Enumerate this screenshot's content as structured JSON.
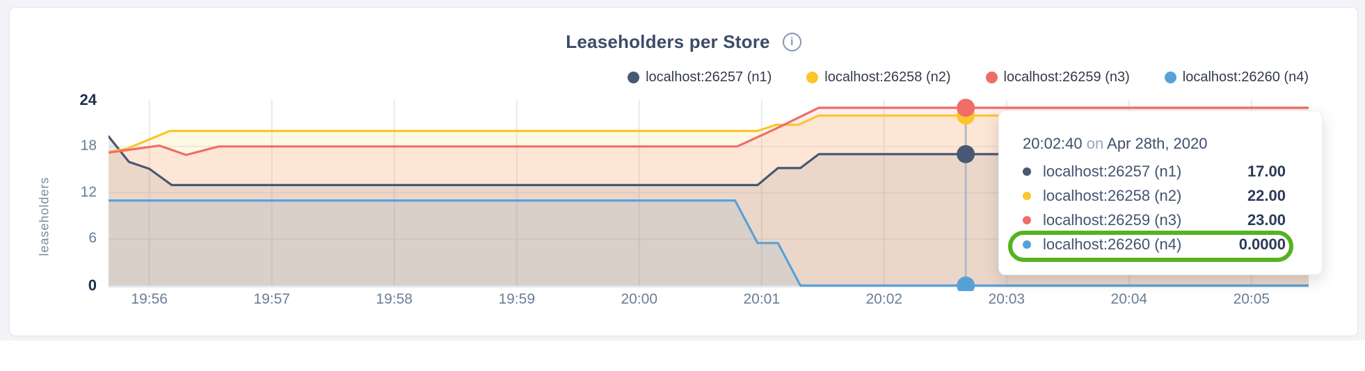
{
  "card": {
    "title": "Leaseholders per Store",
    "info_icon_glyph": "i"
  },
  "legend": {
    "items": [
      {
        "id": "n1",
        "label": "localhost:26257 (n1)",
        "color": "#475872"
      },
      {
        "id": "n2",
        "label": "localhost:26258 (n2)",
        "color": "#fcc52b"
      },
      {
        "id": "n3",
        "label": "localhost:26259 (n3)",
        "color": "#ef6d68"
      },
      {
        "id": "n4",
        "label": "localhost:26260 (n4)",
        "color": "#58a1d8"
      }
    ]
  },
  "chart_data": {
    "type": "area",
    "title": "Leaseholders per Store",
    "xlabel": "",
    "ylabel": "leaseholders",
    "ylim": [
      0,
      24
    ],
    "y_ticks": [
      0,
      6,
      12,
      18,
      24
    ],
    "y_ticks_strong": [
      0,
      24
    ],
    "x_ticks": [
      "19:56",
      "19:57",
      "19:58",
      "19:59",
      "20:00",
      "20:01",
      "20:02",
      "20:03",
      "20:04",
      "20:05"
    ],
    "x_range": [
      "19:55:40",
      "20:05:28"
    ],
    "grid": true,
    "legend_position": "top-right",
    "series": [
      {
        "name": "localhost:26257 (n1)",
        "color": "#475872",
        "points": [
          [
            "19:55:40",
            19.3
          ],
          [
            "19:55:50",
            16
          ],
          [
            "19:56:00",
            15.1
          ],
          [
            "19:56:11",
            13
          ],
          [
            "20:00:58",
            13
          ],
          [
            "20:01:08",
            15.2
          ],
          [
            "20:01:19",
            15.2
          ],
          [
            "20:01:28",
            17
          ],
          [
            "20:05:28",
            17
          ]
        ]
      },
      {
        "name": "localhost:26258 (n2)",
        "color": "#fcc52b",
        "points": [
          [
            "19:55:40",
            17.3
          ],
          [
            "19:55:49",
            17.7
          ],
          [
            "19:56:10",
            20
          ],
          [
            "20:00:58",
            20
          ],
          [
            "20:01:07",
            20.8
          ],
          [
            "20:01:18",
            20.8
          ],
          [
            "20:01:28",
            22
          ],
          [
            "20:05:28",
            22
          ]
        ]
      },
      {
        "name": "localhost:26259 (n3)",
        "color": "#ef6d68",
        "points": [
          [
            "19:55:40",
            17.2
          ],
          [
            "19:56:05",
            18.1
          ],
          [
            "19:56:18",
            16.9
          ],
          [
            "19:56:34",
            18
          ],
          [
            "20:00:48",
            18
          ],
          [
            "20:01:07",
            20.3
          ],
          [
            "20:01:28",
            23
          ],
          [
            "20:05:28",
            23
          ]
        ]
      },
      {
        "name": "localhost:26260 (n4)",
        "color": "#58a1d8",
        "points": [
          [
            "19:55:40",
            11
          ],
          [
            "20:00:47",
            11
          ],
          [
            "20:00:58",
            5.5
          ],
          [
            "20:01:08",
            5.5
          ],
          [
            "20:01:19",
            0
          ],
          [
            "20:05:28",
            0
          ]
        ]
      }
    ],
    "hover": {
      "time": "20:02:40",
      "values": [
        17,
        22,
        23,
        0
      ]
    },
    "fill_opacity": 0.12
  },
  "tooltip": {
    "time": "20:02:40",
    "connector": "on",
    "date": "Apr 28th, 2020",
    "rows": [
      {
        "label": "localhost:26257 (n1)",
        "value": "17.00",
        "color": "#475872",
        "highlighted": false
      },
      {
        "label": "localhost:26258 (n2)",
        "value": "22.00",
        "color": "#fcc52b",
        "highlighted": false
      },
      {
        "label": "localhost:26259 (n3)",
        "value": "23.00",
        "color": "#ef6d68",
        "highlighted": false
      },
      {
        "label": "localhost:26260 (n4)",
        "value": "0.0000",
        "color": "#58a1d8",
        "highlighted": true
      }
    ],
    "highlight_color": "#53b320"
  },
  "colors": {
    "grid": "#e7eaf0",
    "baseline": "#d9dde4",
    "hover_line": "#b3bac4",
    "title": "#3d4c66",
    "axis_tick": "#6b7d95",
    "axis_tick_strong": "#1f2d4d"
  }
}
